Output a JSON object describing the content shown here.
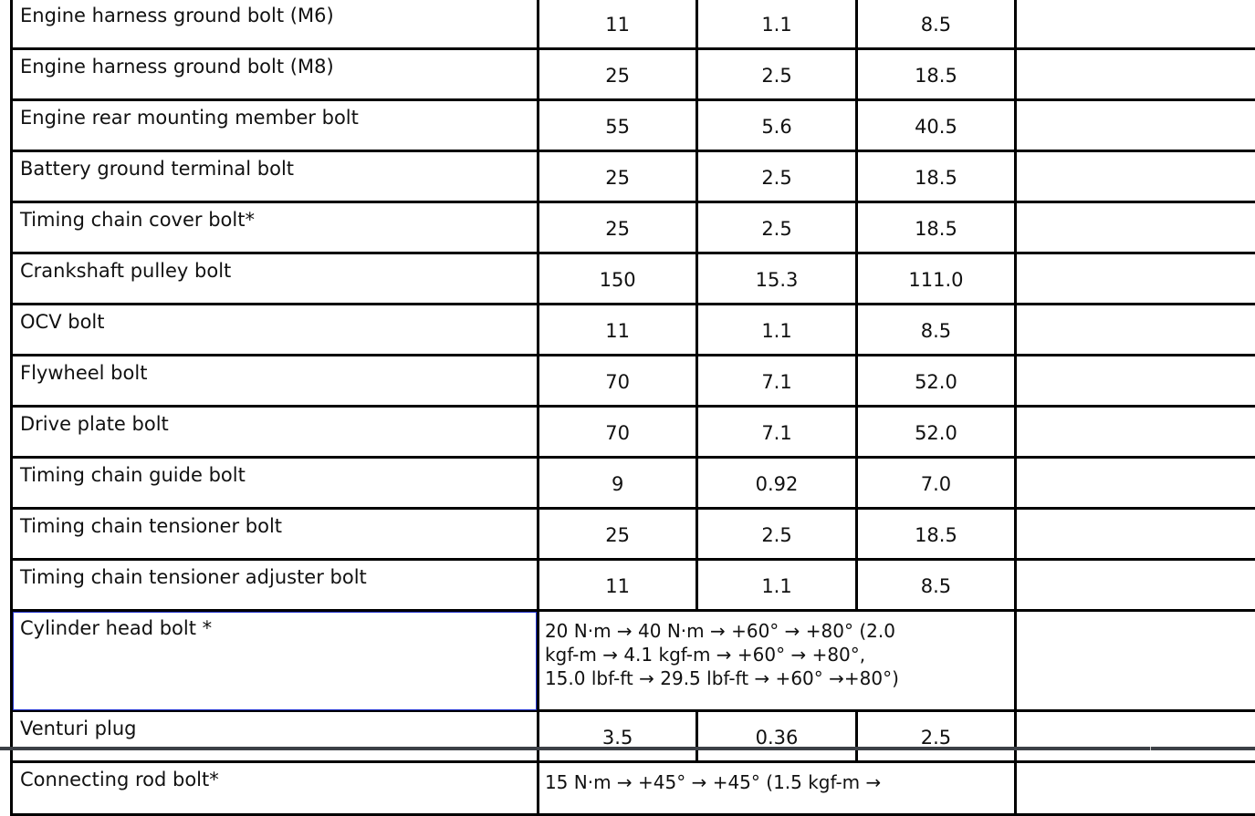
{
  "rows": [
    {
      "name": "Engine harness ground bolt (M6)",
      "nm": "11",
      "kgf": "1.1",
      "lbf": "8.5"
    },
    {
      "name": "Engine harness ground bolt (M8)",
      "nm": "25",
      "kgf": "2.5",
      "lbf": "18.5"
    },
    {
      "name": "Engine rear mounting member bolt",
      "nm": "55",
      "kgf": "5.6",
      "lbf": "40.5"
    },
    {
      "name": "Battery ground terminal bolt",
      "nm": "25",
      "kgf": "2.5",
      "lbf": "18.5"
    },
    {
      "name": "Timing chain cover bolt*",
      "nm": "25",
      "kgf": "2.5",
      "lbf": "18.5"
    },
    {
      "name": "Crankshaft pulley bolt",
      "nm": "150",
      "kgf": "15.3",
      "lbf": "111.0"
    },
    {
      "name": "OCV bolt",
      "nm": "11",
      "kgf": "1.1",
      "lbf": "8.5"
    },
    {
      "name": "Flywheel bolt",
      "nm": "70",
      "kgf": "7.1",
      "lbf": "52.0"
    },
    {
      "name": "Drive plate bolt",
      "nm": "70",
      "kgf": "7.1",
      "lbf": "52.0"
    },
    {
      "name": "Timing chain guide bolt",
      "nm": "9",
      "kgf": "0.92",
      "lbf": "7.0"
    },
    {
      "name": "Timing chain tensioner bolt",
      "nm": "25",
      "kgf": "2.5",
      "lbf": "18.5"
    },
    {
      "name": "Timing chain tensioner adjuster bolt",
      "nm": "11",
      "kgf": "1.1",
      "lbf": "8.5"
    }
  ],
  "cylinder_head": {
    "name": "Cylinder head bolt *",
    "lines": [
      "20 N·m → 40 N·m → +60° → +80° (2.0",
      "kgf-m → 4.1 kgf-m → +60° → +80°,",
      "15.0 lbf-ft → 29.5 lbf-ft → +60° →+80°)"
    ]
  },
  "venturi": {
    "name": "Venturi plug",
    "nm": "3.5",
    "kgf": "0.36",
    "lbf": "2.5"
  },
  "connecting_rod": {
    "name": "Connecting rod bolt*",
    "spec": "15 N·m → +45° → +45° (1.5 kgf-m →"
  }
}
